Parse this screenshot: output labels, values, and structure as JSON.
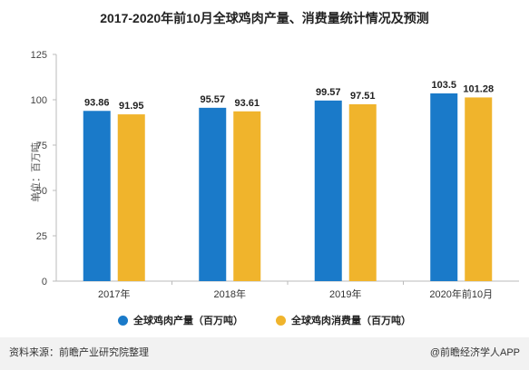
{
  "title": "2017-2020年前10月全球鸡肉产量、消费量统计情况及预测",
  "ylabel": "单位：百万吨",
  "legend": {
    "series1": "全球鸡肉产量（百万吨）",
    "series2": "全球鸡肉消费量（百万吨）"
  },
  "footer": {
    "source": "资料来源：前瞻产业研究院整理",
    "brand": "@前瞻经济学人APP"
  },
  "colors": {
    "series1": "#1a7ac9",
    "series2": "#f0b42c",
    "axis": "#bbbbbb",
    "footer_bg": "#f2f2f2"
  },
  "chart_data": {
    "type": "bar",
    "categories": [
      "2017年",
      "2018年",
      "2019年",
      "2020年前10月"
    ],
    "series": [
      {
        "name": "全球鸡肉产量（百万吨）",
        "values": [
          93.86,
          95.57,
          99.57,
          103.5
        ],
        "labels": [
          "93.86",
          "95.57",
          "99.57",
          "103.5"
        ]
      },
      {
        "name": "全球鸡肉消费量（百万吨）",
        "values": [
          91.95,
          93.61,
          97.51,
          101.28
        ],
        "labels": [
          "91.95",
          "93.61",
          "97.51",
          "101.28"
        ]
      }
    ],
    "yticks": [
      "0",
      "25",
      "50",
      "75",
      "100",
      "125"
    ],
    "ylim": [
      0,
      125
    ],
    "grid": false
  }
}
